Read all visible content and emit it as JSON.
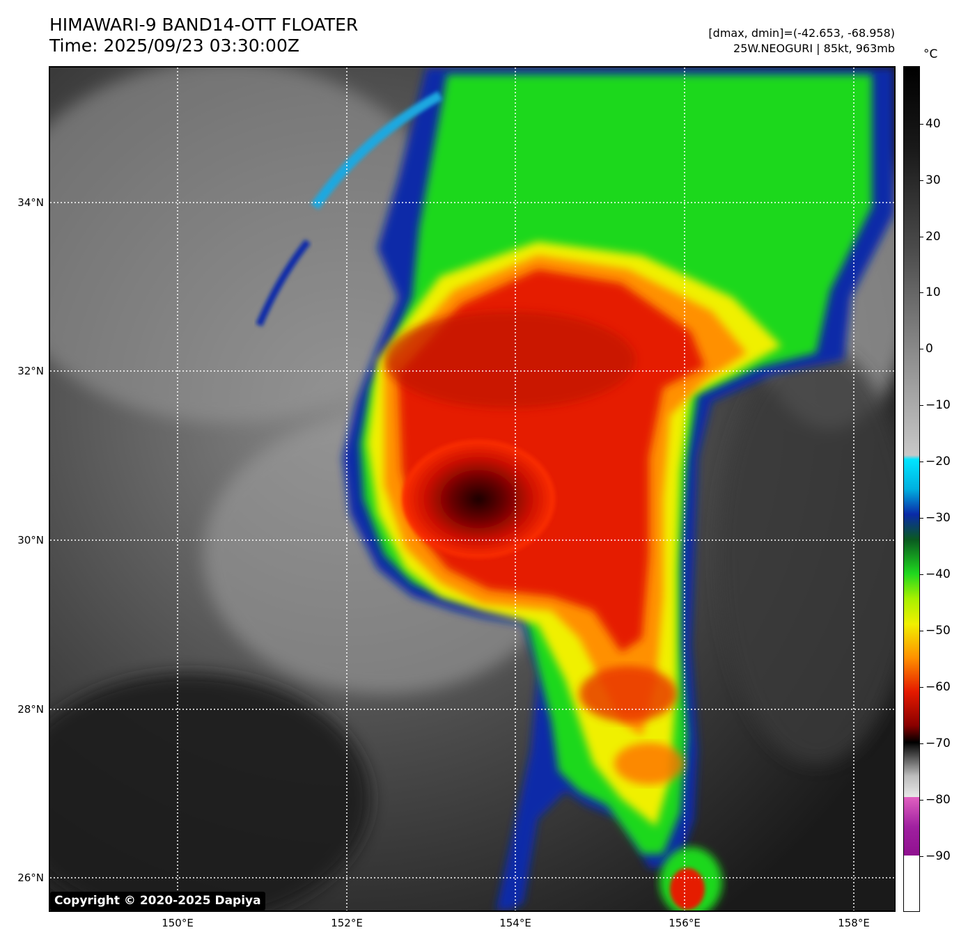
{
  "header": {
    "title_line1": "HIMAWARI-9 BAND14-OTT FLOATER",
    "title_line2": "Time: 2025/09/23 03:30:00Z",
    "stats_line": "[dmax, dmin]=(-42.653, -68.958)",
    "storm_line": "25W.NEOGURI | 85kt, 963mb"
  },
  "map": {
    "latitude_labels": [
      "34°N",
      "32°N",
      "30°N",
      "28°N",
      "26°N"
    ],
    "longitude_labels": [
      "150°E",
      "152°E",
      "154°E",
      "156°E",
      "158°E"
    ],
    "copyright": "Copyright © 2020-2025 Dapiya"
  },
  "colorbar": {
    "unit": "°C",
    "tick_labels": [
      "40",
      "30",
      "20",
      "10",
      "0",
      "−10",
      "−20",
      "−30",
      "−40",
      "−50",
      "−60",
      "−70",
      "−80",
      "−90"
    ]
  },
  "colors": {
    "frame": "#000000",
    "background": "#ffffff"
  }
}
